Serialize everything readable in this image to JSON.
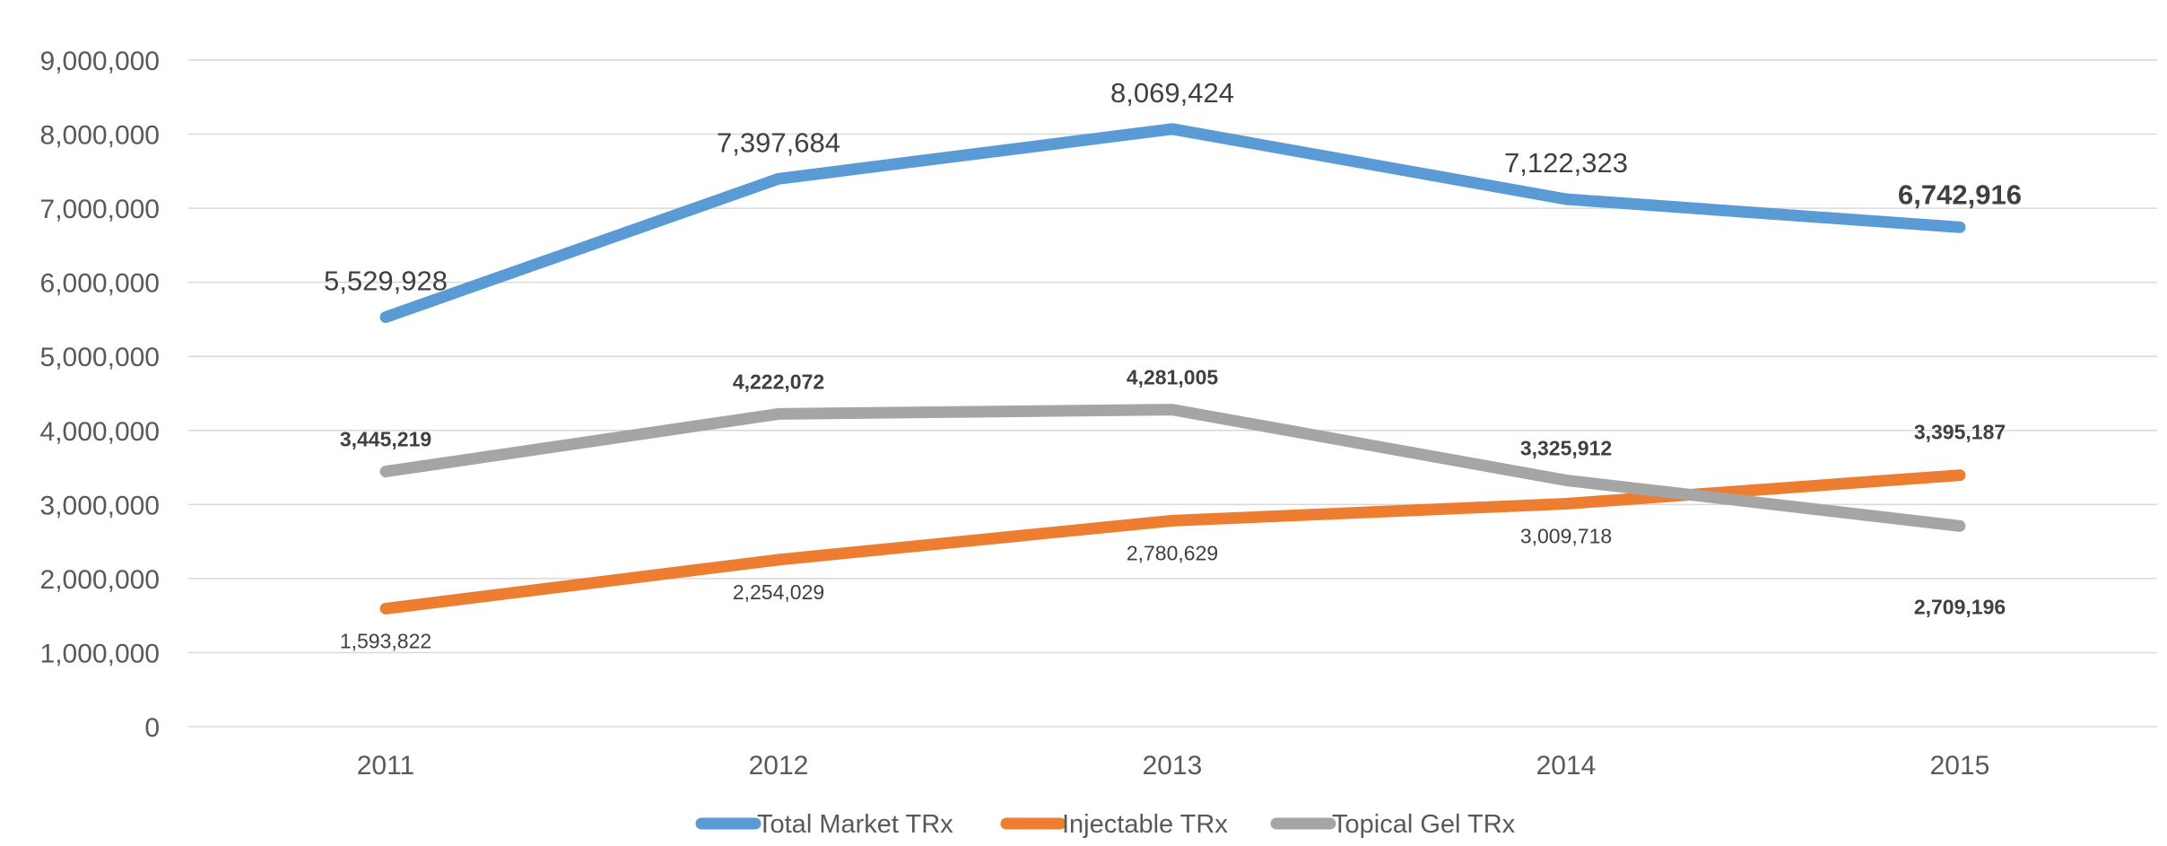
{
  "chart_data": {
    "type": "line",
    "title": "",
    "xlabel": "",
    "ylabel": "",
    "categories": [
      "2011",
      "2012",
      "2013",
      "2014",
      "2015"
    ],
    "ylim": [
      0,
      9000000
    ],
    "y_ticks": [
      0,
      1000000,
      2000000,
      3000000,
      4000000,
      5000000,
      6000000,
      7000000,
      8000000,
      9000000
    ],
    "y_tick_labels": [
      "0",
      "1,000,000",
      "2,000,000",
      "3,000,000",
      "4,000,000",
      "5,000,000",
      "6,000,000",
      "7,000,000",
      "8,000,000",
      "9,000,000"
    ],
    "grid": true,
    "legend_position": "bottom",
    "series": [
      {
        "name": "Total Market TRx",
        "color": "#5b9bd5",
        "values": [
          5529928,
          7397684,
          8069424,
          7122323,
          6742916
        ],
        "labels": [
          "5,529,928",
          "7,397,684",
          "8,069,424",
          "7,122,323",
          "6,742,916"
        ]
      },
      {
        "name": "Injectable TRx",
        "color": "#ed7d31",
        "values": [
          1593822,
          2254029,
          2780629,
          3009718,
          3395187
        ],
        "labels": [
          "1,593,822",
          "2,254,029",
          "2,780,629",
          "3,009,718",
          "3,395,187"
        ]
      },
      {
        "name": "Topical Gel TRx",
        "color": "#a5a5a5",
        "values": [
          3445219,
          4222072,
          4281005,
          3325912,
          2709196
        ],
        "labels": [
          "3,445,219",
          "4,222,072",
          "4,281,005",
          "3,325,912",
          "2,709,196"
        ]
      }
    ]
  }
}
